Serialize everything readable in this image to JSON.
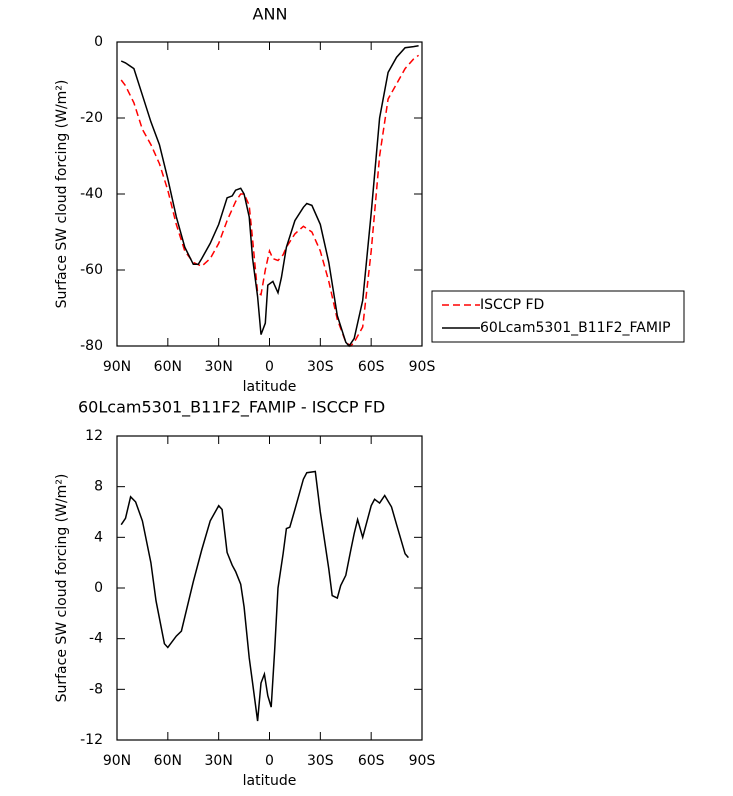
{
  "chart_data": [
    {
      "type": "line",
      "title": "ANN",
      "x_label": "latitude",
      "y_label": "Surface SW cloud forcing (W/m²)",
      "xlim": [
        90,
        -90
      ],
      "xticks": [
        {
          "value": 90,
          "label": "90N"
        },
        {
          "value": 60,
          "label": "60N"
        },
        {
          "value": 30,
          "label": "30N"
        },
        0,
        {
          "value": -30,
          "label": "30S"
        },
        {
          "value": -60,
          "label": "60S"
        },
        {
          "value": -90,
          "label": "90S"
        }
      ],
      "ylim": [
        -80,
        0
      ],
      "yticks": [
        -80,
        -60,
        -40,
        -20,
        0
      ],
      "legend": "right",
      "series": [
        {
          "name": "ISCCP FD",
          "color": "#ff0000",
          "dash": true,
          "x": [
            87.5,
            85,
            80,
            75,
            70,
            65,
            60,
            55,
            50,
            45,
            40,
            35,
            30,
            25,
            20,
            17,
            15,
            12,
            10,
            7,
            5,
            2.5,
            0,
            -2,
            -5,
            -8,
            -10,
            -15,
            -20,
            -25,
            -30,
            -35,
            -40,
            -45,
            -48,
            -50,
            -55,
            -60,
            -65,
            -70,
            -75,
            -80,
            -85,
            -88
          ],
          "values": [
            -10,
            -11.5,
            -16,
            -23,
            -27,
            -32,
            -39,
            -48,
            -55,
            -58,
            -59,
            -57,
            -53,
            -47,
            -42,
            -40,
            -40,
            -43,
            -52,
            -66,
            -66.5,
            -60,
            -55,
            -57,
            -57.5,
            -56,
            -54,
            -50.5,
            -48.5,
            -50,
            -55,
            -63,
            -73,
            -79,
            -80,
            -79,
            -75,
            -55,
            -30,
            -15,
            -11,
            -7,
            -4.5,
            -3.5
          ]
        },
        {
          "name": "60Lcam5301_B11F2_FAMIP",
          "color": "#000000",
          "dash": false,
          "x": [
            87.5,
            85,
            80,
            75,
            70,
            65,
            60,
            55,
            50,
            45,
            42,
            40,
            35,
            30,
            25,
            22,
            20,
            17,
            15,
            12,
            10,
            7,
            5,
            2.5,
            1,
            -2,
            -5,
            -7,
            -10,
            -15,
            -20,
            -22,
            -25,
            -30,
            -35,
            -40,
            -45,
            -47,
            -50,
            -55,
            -60,
            -65,
            -70,
            -75,
            -80,
            -85,
            -88
          ],
          "values": [
            -5,
            -5.5,
            -7,
            -14,
            -21,
            -27,
            -36,
            -46,
            -54,
            -58.5,
            -58.5,
            -57,
            -53,
            -48,
            -41,
            -40.5,
            -39,
            -38.5,
            -40,
            -46,
            -57,
            -67,
            -77,
            -74,
            -64,
            -63,
            -66,
            -62,
            -54,
            -47,
            -43.5,
            -42.5,
            -43,
            -48,
            -58,
            -72,
            -79,
            -80,
            -78,
            -68,
            -45,
            -20,
            -8,
            -4,
            -1.5,
            -1.2,
            -1
          ]
        }
      ]
    },
    {
      "type": "line",
      "title": "60Lcam5301_B11F2_FAMIP - ISCCP FD",
      "x_label": "latitude",
      "y_label": "Surface SW cloud forcing (W/m²)",
      "xlim": [
        90,
        -90
      ],
      "xticks": [
        {
          "value": 90,
          "label": "90N"
        },
        {
          "value": 60,
          "label": "60N"
        },
        {
          "value": 30,
          "label": "30N"
        },
        0,
        {
          "value": -30,
          "label": "30S"
        },
        {
          "value": -60,
          "label": "60S"
        },
        {
          "value": -90,
          "label": "90S"
        }
      ],
      "ylim": [
        -12,
        12
      ],
      "yticks": [
        -12,
        -8,
        -4,
        0,
        4,
        8,
        12
      ],
      "series": [
        {
          "color": "#000000",
          "dash": false,
          "x": [
            87.5,
            85,
            82,
            79,
            75,
            70,
            67,
            62,
            60,
            55,
            52,
            45,
            40,
            35,
            30,
            28,
            25,
            22,
            20,
            17,
            15,
            12,
            10,
            7,
            5,
            3,
            1,
            -1,
            -3,
            -5,
            -8,
            -10,
            -12,
            -15,
            -20,
            -22,
            -27,
            -30,
            -35,
            -37,
            -40,
            -42,
            -45,
            -48,
            -50,
            -52,
            -55,
            -60,
            -62,
            -65,
            -68,
            -72,
            -75,
            -80,
            -82
          ],
          "values": [
            5,
            5.5,
            7.2,
            6.8,
            5.3,
            2,
            -1,
            -4.4,
            -4.7,
            -3.8,
            -3.4,
            0.5,
            3,
            5.3,
            6.5,
            6.2,
            2.8,
            1.8,
            1.3,
            0.3,
            -1.5,
            -5.5,
            -7.5,
            -10.5,
            -7.5,
            -6.8,
            -8.5,
            -9.4,
            -5,
            0,
            2.7,
            4.7,
            4.8,
            6.2,
            8.6,
            9.1,
            9.2,
            6,
            1.5,
            -0.6,
            -0.8,
            0.2,
            1,
            3,
            4.3,
            5.4,
            4,
            6.5,
            7,
            6.7,
            7.3,
            6.4,
            5,
            2.7,
            2.4
          ]
        }
      ]
    }
  ]
}
